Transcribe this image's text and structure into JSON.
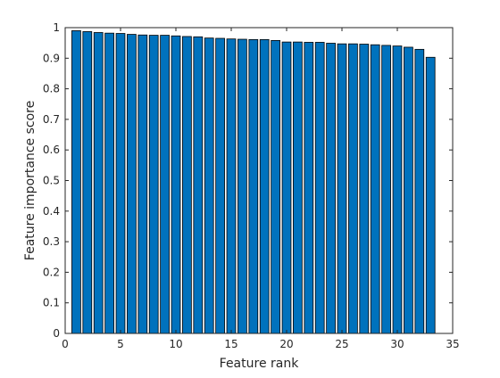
{
  "chart_data": {
    "type": "bar",
    "title": "",
    "xlabel": "Feature rank",
    "ylabel": "Feature importance score",
    "xlim": [
      0,
      35
    ],
    "ylim": [
      0,
      1
    ],
    "xticks": [
      0,
      5,
      10,
      15,
      20,
      25,
      30,
      35
    ],
    "yticks": [
      0,
      0.1,
      0.2,
      0.3,
      0.4,
      0.5,
      0.6,
      0.7,
      0.8,
      0.9,
      1
    ],
    "xtick_labels": [
      "0",
      "5",
      "10",
      "15",
      "20",
      "25",
      "30",
      "35"
    ],
    "ytick_labels": [
      "0",
      "0.1",
      "0.2",
      "0.3",
      "0.4",
      "0.5",
      "0.6",
      "0.7",
      "0.8",
      "0.9",
      "1"
    ],
    "grid": false,
    "bar_color": "#0072BD",
    "edge_color": "#000000",
    "x": [
      1,
      2,
      3,
      4,
      5,
      6,
      7,
      8,
      9,
      10,
      11,
      12,
      13,
      14,
      15,
      16,
      17,
      18,
      19,
      20,
      21,
      22,
      23,
      24,
      25,
      26,
      27,
      28,
      29,
      30,
      31,
      32,
      33
    ],
    "values": [
      0.99,
      0.987,
      0.984,
      0.982,
      0.981,
      0.978,
      0.976,
      0.975,
      0.975,
      0.973,
      0.971,
      0.97,
      0.966,
      0.965,
      0.963,
      0.962,
      0.961,
      0.961,
      0.958,
      0.953,
      0.953,
      0.952,
      0.952,
      0.949,
      0.947,
      0.947,
      0.946,
      0.944,
      0.942,
      0.94,
      0.936,
      0.929,
      0.903
    ]
  }
}
